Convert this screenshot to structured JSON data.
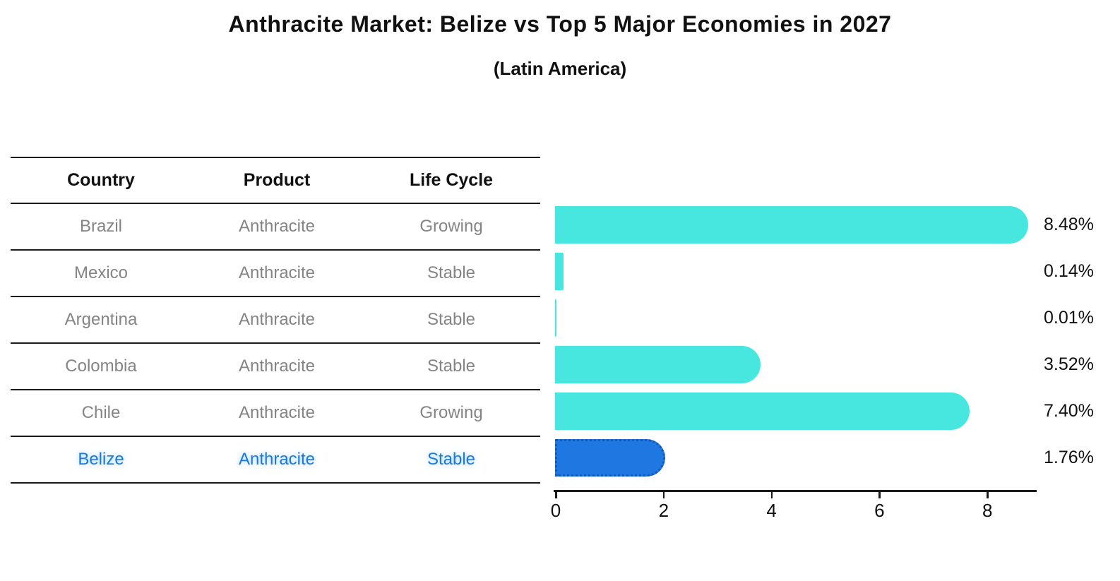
{
  "chart_data": {
    "type": "bar",
    "orientation": "horizontal",
    "title": "Anthracite Market: Belize vs Top 5 Major Economies in 2027",
    "subtitle": "(Latin America)",
    "categories": [
      "Brazil",
      "Mexico",
      "Argentina",
      "Colombia",
      "Chile",
      "Belize"
    ],
    "values": [
      8.48,
      0.14,
      0.01,
      3.52,
      7.4,
      1.76
    ],
    "labels": [
      "8.48%",
      "0.14%",
      "0.01%",
      "3.52%",
      "7.40%",
      "1.76%"
    ],
    "x_ticks": [
      0,
      2,
      4,
      6,
      8
    ],
    "xlim": [
      0,
      8.9
    ],
    "grid": false,
    "legend": "none",
    "bar_color": "#47E6DF",
    "highlight_color": "#1F78E2",
    "highlight_border": "#1857B8",
    "highlight_index": 5
  },
  "table": {
    "headers": [
      "Country",
      "Product",
      "Life Cycle"
    ],
    "rows": [
      {
        "country": "Brazil",
        "product": "Anthracite",
        "life_cycle": "Growing",
        "highlight": false
      },
      {
        "country": "Mexico",
        "product": "Anthracite",
        "life_cycle": "Stable",
        "highlight": false
      },
      {
        "country": "Argentina",
        "product": "Anthracite",
        "life_cycle": "Stable",
        "highlight": false
      },
      {
        "country": "Colombia",
        "product": "Anthracite",
        "life_cycle": "Stable",
        "highlight": false
      },
      {
        "country": "Chile",
        "product": "Anthracite",
        "life_cycle": "Growing",
        "highlight": false
      },
      {
        "country": "Belize",
        "product": "Anthracite",
        "life_cycle": "Stable",
        "highlight": true
      }
    ]
  },
  "colors": {
    "text_primary": "#111111",
    "text_muted": "#848484",
    "highlight_text": "#1E78D6",
    "axis": "#1A1A1A"
  }
}
